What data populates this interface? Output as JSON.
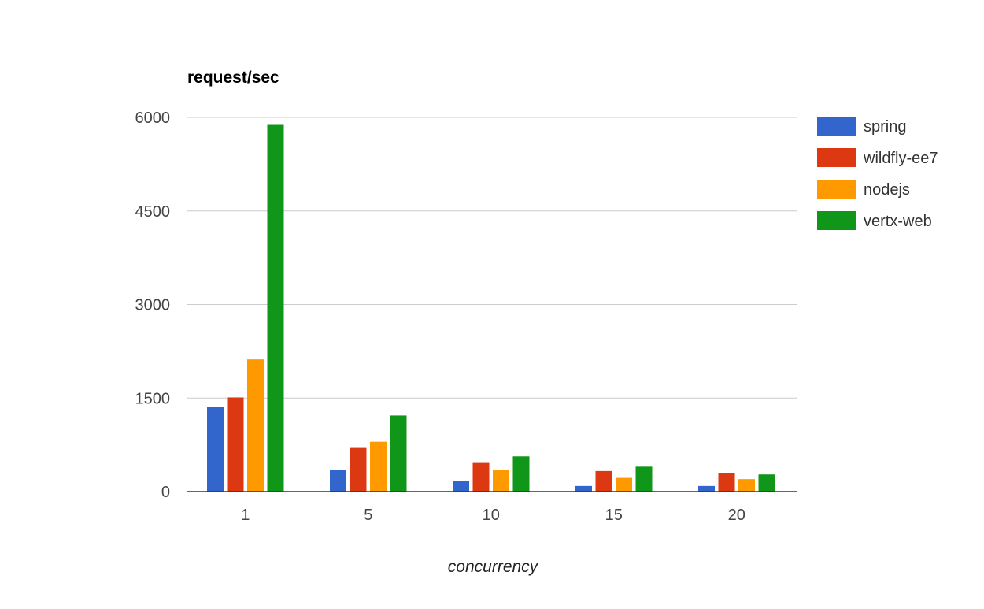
{
  "chart_data": {
    "type": "bar",
    "title": "request/sec",
    "xlabel": "concurrency",
    "ylabel": "",
    "categories": [
      "1",
      "5",
      "10",
      "15",
      "20"
    ],
    "series": [
      {
        "name": "spring",
        "color": "#3366cc",
        "values": [
          1360,
          350,
          175,
          90,
          90
        ]
      },
      {
        "name": "wildfly-ee7",
        "color": "#dc3912",
        "values": [
          1510,
          700,
          460,
          330,
          300
        ]
      },
      {
        "name": "nodejs",
        "color": "#ff9900",
        "values": [
          2120,
          800,
          350,
          220,
          200
        ]
      },
      {
        "name": "vertx-web",
        "color": "#109618",
        "values": [
          5880,
          1220,
          565,
          400,
          275
        ]
      }
    ],
    "ylim": [
      0,
      6000
    ],
    "yticks": [
      0,
      1500,
      3000,
      4500,
      6000
    ],
    "grid": true,
    "legend": "right"
  }
}
